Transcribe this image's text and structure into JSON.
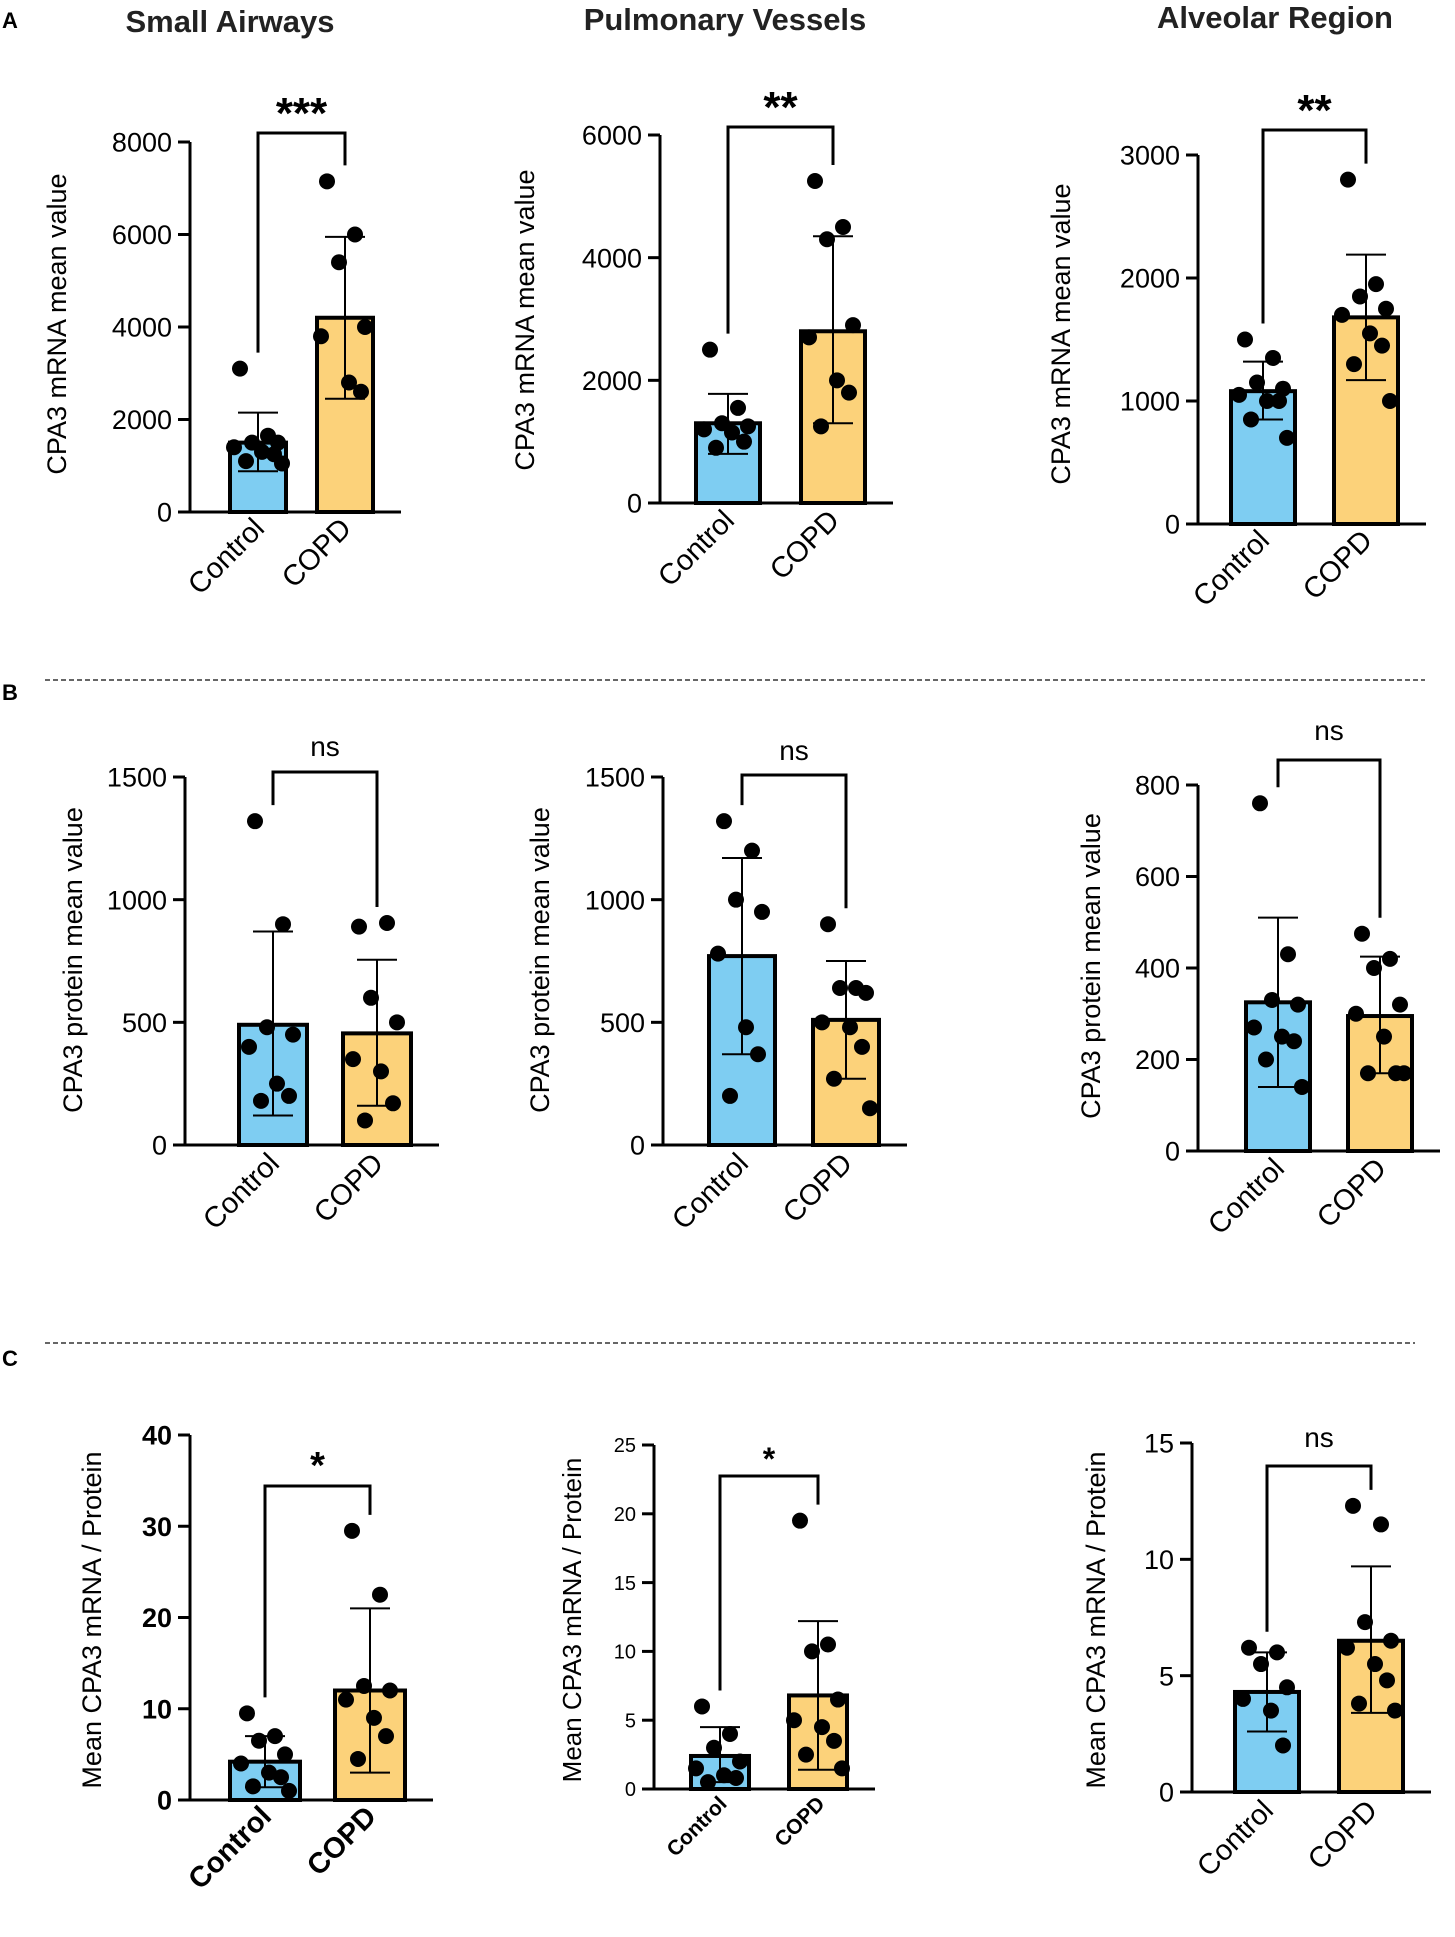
{
  "figure": {
    "section_labels": [
      "A",
      "B",
      "C"
    ],
    "colors": {
      "control": "#7ecdf2",
      "copd": "#fcd27a",
      "axis": "#000000",
      "dots": "#000000",
      "divider": "#333333"
    }
  },
  "chart_data": [
    {
      "id": "A1",
      "type": "bar",
      "title": "Small Airways",
      "ylabel": "CPA3 mRNA mean  value",
      "categories": [
        "Control",
        "COPD"
      ],
      "ylim": [
        0,
        8000
      ],
      "yticks": [
        0,
        2000,
        4000,
        6000,
        8000
      ],
      "ytick_labels": [
        "0",
        "2000",
        "4000",
        "6000",
        "8000"
      ],
      "series": [
        {
          "name": "Control",
          "mean": 1500,
          "sd_low": 880,
          "sd_high": 2150,
          "points": [
            3100,
            1650,
            1500,
            1500,
            1400,
            1300,
            1250,
            1100,
            1050
          ]
        },
        {
          "name": "COPD",
          "mean": 4200,
          "sd_low": 2450,
          "sd_high": 5950,
          "points": [
            7150,
            6000,
            5400,
            4000,
            3800,
            2800,
            2600
          ]
        }
      ],
      "significance": "***"
    },
    {
      "id": "A2",
      "type": "bar",
      "title": "Pulmonary Vessels",
      "ylabel": "CPA3 mRNA mean  value",
      "categories": [
        "Control",
        "COPD"
      ],
      "ylim": [
        0,
        6000
      ],
      "yticks": [
        0,
        2000,
        4000,
        6000
      ],
      "ytick_labels": [
        "0",
        "2000",
        "4000",
        "6000"
      ],
      "series": [
        {
          "name": "Control",
          "mean": 1300,
          "sd_low": 800,
          "sd_high": 1780,
          "points": [
            2500,
            1550,
            1300,
            1250,
            1200,
            1150,
            1000,
            900
          ]
        },
        {
          "name": "COPD",
          "mean": 2800,
          "sd_low": 1300,
          "sd_high": 4350,
          "points": [
            5250,
            4500,
            4300,
            2900,
            2700,
            2000,
            1800,
            1250
          ]
        }
      ],
      "significance": "**"
    },
    {
      "id": "A3",
      "type": "bar",
      "title": "Alveolar Region",
      "ylabel": "CPA3 mRNA mean  value",
      "categories": [
        "Control",
        "COPD"
      ],
      "ylim": [
        0,
        3000
      ],
      "yticks": [
        0,
        1000,
        2000,
        3000
      ],
      "ytick_labels": [
        "0",
        "1000",
        "2000",
        "3000"
      ],
      "series": [
        {
          "name": "Control",
          "mean": 1080,
          "sd_low": 850,
          "sd_high": 1320,
          "points": [
            1500,
            1350,
            1150,
            1100,
            1050,
            1000,
            1000,
            850,
            700
          ]
        },
        {
          "name": "COPD",
          "mean": 1680,
          "sd_low": 1170,
          "sd_high": 2190,
          "points": [
            2800,
            1950,
            1850,
            1750,
            1700,
            1550,
            1450,
            1300,
            1000
          ]
        }
      ],
      "significance": "**"
    },
    {
      "id": "B1",
      "type": "bar",
      "title": "",
      "ylabel": "CPA3 protein mean value",
      "categories": [
        "Control",
        "COPD"
      ],
      "ylim": [
        0,
        1500
      ],
      "yticks": [
        0,
        500,
        1000,
        1500
      ],
      "ytick_labels": [
        "0",
        "500",
        "1000",
        "1500"
      ],
      "series": [
        {
          "name": "Control",
          "mean": 490,
          "sd_low": 120,
          "sd_high": 870,
          "points": [
            1320,
            900,
            480,
            450,
            400,
            250,
            200,
            180
          ]
        },
        {
          "name": "COPD",
          "mean": 455,
          "sd_low": 160,
          "sd_high": 755,
          "points": [
            890,
            905,
            600,
            500,
            350,
            300,
            170,
            100
          ]
        }
      ],
      "significance": "ns"
    },
    {
      "id": "B2",
      "type": "bar",
      "title": "",
      "ylabel": "CPA3 protein mean value",
      "categories": [
        "Control",
        "COPD"
      ],
      "ylim": [
        0,
        1500
      ],
      "yticks": [
        0,
        500,
        1000,
        1500
      ],
      "ytick_labels": [
        "0",
        "500",
        "1000",
        "1500"
      ],
      "series": [
        {
          "name": "Control",
          "mean": 770,
          "sd_low": 370,
          "sd_high": 1170,
          "points": [
            1320,
            1200,
            1000,
            950,
            780,
            480,
            370,
            200
          ]
        },
        {
          "name": "COPD",
          "mean": 510,
          "sd_low": 270,
          "sd_high": 750,
          "points": [
            900,
            640,
            640,
            620,
            500,
            480,
            400,
            270,
            150
          ]
        }
      ],
      "significance": "ns"
    },
    {
      "id": "B3",
      "type": "bar",
      "title": "",
      "ylabel": "CPA3 protein mean value",
      "categories": [
        "Control",
        "COPD"
      ],
      "ylim": [
        0,
        800
      ],
      "yticks": [
        0,
        200,
        400,
        600,
        800
      ],
      "ytick_labels": [
        "0",
        "200",
        "400",
        "600",
        "800"
      ],
      "series": [
        {
          "name": "Control",
          "mean": 325,
          "sd_low": 140,
          "sd_high": 510,
          "points": [
            760,
            430,
            330,
            320,
            270,
            250,
            240,
            200,
            140
          ]
        },
        {
          "name": "COPD",
          "mean": 295,
          "sd_low": 170,
          "sd_high": 425,
          "points": [
            475,
            420,
            400,
            320,
            300,
            250,
            170,
            170,
            170
          ]
        }
      ],
      "significance": "ns"
    },
    {
      "id": "C1",
      "type": "bar",
      "title": "",
      "ylabel": "Mean CPA3 mRNA / Protein",
      "categories": [
        "Control",
        "COPD"
      ],
      "ylim": [
        0,
        40
      ],
      "yticks": [
        0,
        10,
        20,
        30,
        40
      ],
      "ytick_labels": [
        "0",
        "10",
        "20",
        "30",
        "40"
      ],
      "series": [
        {
          "name": "Control",
          "mean": 4.2,
          "sd_low": 1.4,
          "sd_high": 7.0,
          "points": [
            9.5,
            7.0,
            6.5,
            5.0,
            4.0,
            3.0,
            2.5,
            1.5,
            1.0
          ]
        },
        {
          "name": "COPD",
          "mean": 12.0,
          "sd_low": 3.0,
          "sd_high": 21.0,
          "points": [
            29.5,
            22.5,
            12.5,
            12.0,
            11.0,
            9.0,
            7.0,
            4.5
          ]
        }
      ],
      "significance": "*"
    },
    {
      "id": "C2",
      "type": "bar",
      "title": "",
      "ylabel": "Mean CPA3 mRNA / Protein",
      "categories": [
        "Control",
        "COPD"
      ],
      "ylim": [
        0,
        25
      ],
      "yticks": [
        0,
        5,
        10,
        15,
        20,
        25
      ],
      "ytick_labels": [
        "0",
        "5",
        "10",
        "15",
        "20",
        "25"
      ],
      "series": [
        {
          "name": "Control",
          "mean": 2.4,
          "sd_low": 0.5,
          "sd_high": 4.5,
          "points": [
            6.0,
            4.0,
            3.0,
            2.0,
            1.5,
            1.0,
            0.8,
            0.5
          ]
        },
        {
          "name": "COPD",
          "mean": 6.8,
          "sd_low": 1.4,
          "sd_high": 12.2,
          "points": [
            19.5,
            10.5,
            10.0,
            6.5,
            5.0,
            4.5,
            3.5,
            2.5,
            1.5
          ]
        }
      ],
      "significance": "*"
    },
    {
      "id": "C3",
      "type": "bar",
      "title": "",
      "ylabel": "Mean CPA3 mRNA / Protein",
      "categories": [
        "Control",
        "COPD"
      ],
      "ylim": [
        0,
        15
      ],
      "yticks": [
        0,
        5,
        10,
        15
      ],
      "ytick_labels": [
        "0",
        "5",
        "10",
        "15"
      ],
      "series": [
        {
          "name": "Control",
          "mean": 4.3,
          "sd_low": 2.6,
          "sd_high": 6.0,
          "points": [
            6.2,
            6.0,
            5.5,
            4.5,
            4.0,
            3.5,
            2.0
          ]
        },
        {
          "name": "COPD",
          "mean": 6.5,
          "sd_low": 3.4,
          "sd_high": 9.7,
          "points": [
            12.3,
            11.5,
            7.3,
            6.5,
            6.2,
            5.5,
            4.8,
            3.8,
            3.5
          ]
        }
      ],
      "significance": "ns"
    }
  ]
}
